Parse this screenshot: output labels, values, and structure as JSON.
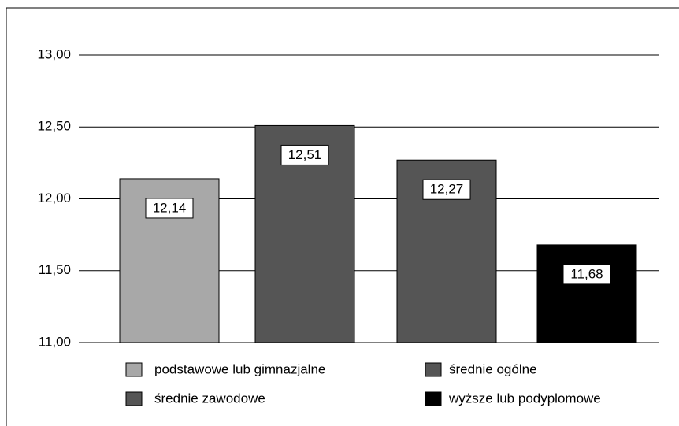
{
  "chart_data": {
    "type": "bar",
    "series": [
      {
        "name": "podstawowe lub gimnazjalne",
        "color": "#a8a8a8",
        "values": [
          12.14
        ],
        "value_labels": [
          "12,14"
        ]
      },
      {
        "name": "średnie zawodowe",
        "color": "#555555",
        "values": [
          12.51
        ],
        "value_labels": [
          "12,51"
        ]
      },
      {
        "name": "średnie ogólne",
        "color": "#555555",
        "values": [
          12.27
        ],
        "value_labels": [
          "12,27"
        ]
      },
      {
        "name": "wyższe lub podyplomowe",
        "color": "#000000",
        "values": [
          11.68
        ],
        "value_labels": [
          "11,68"
        ]
      }
    ],
    "ylim": [
      11,
      13
    ],
    "yticks": [
      {
        "value": 11,
        "label": "11,00"
      },
      {
        "value": 11.5,
        "label": "11,50"
      },
      {
        "value": 12,
        "label": "12,00"
      },
      {
        "value": 12.5,
        "label": "12,50"
      },
      {
        "value": 13,
        "label": "13,00"
      }
    ],
    "grid": true
  }
}
